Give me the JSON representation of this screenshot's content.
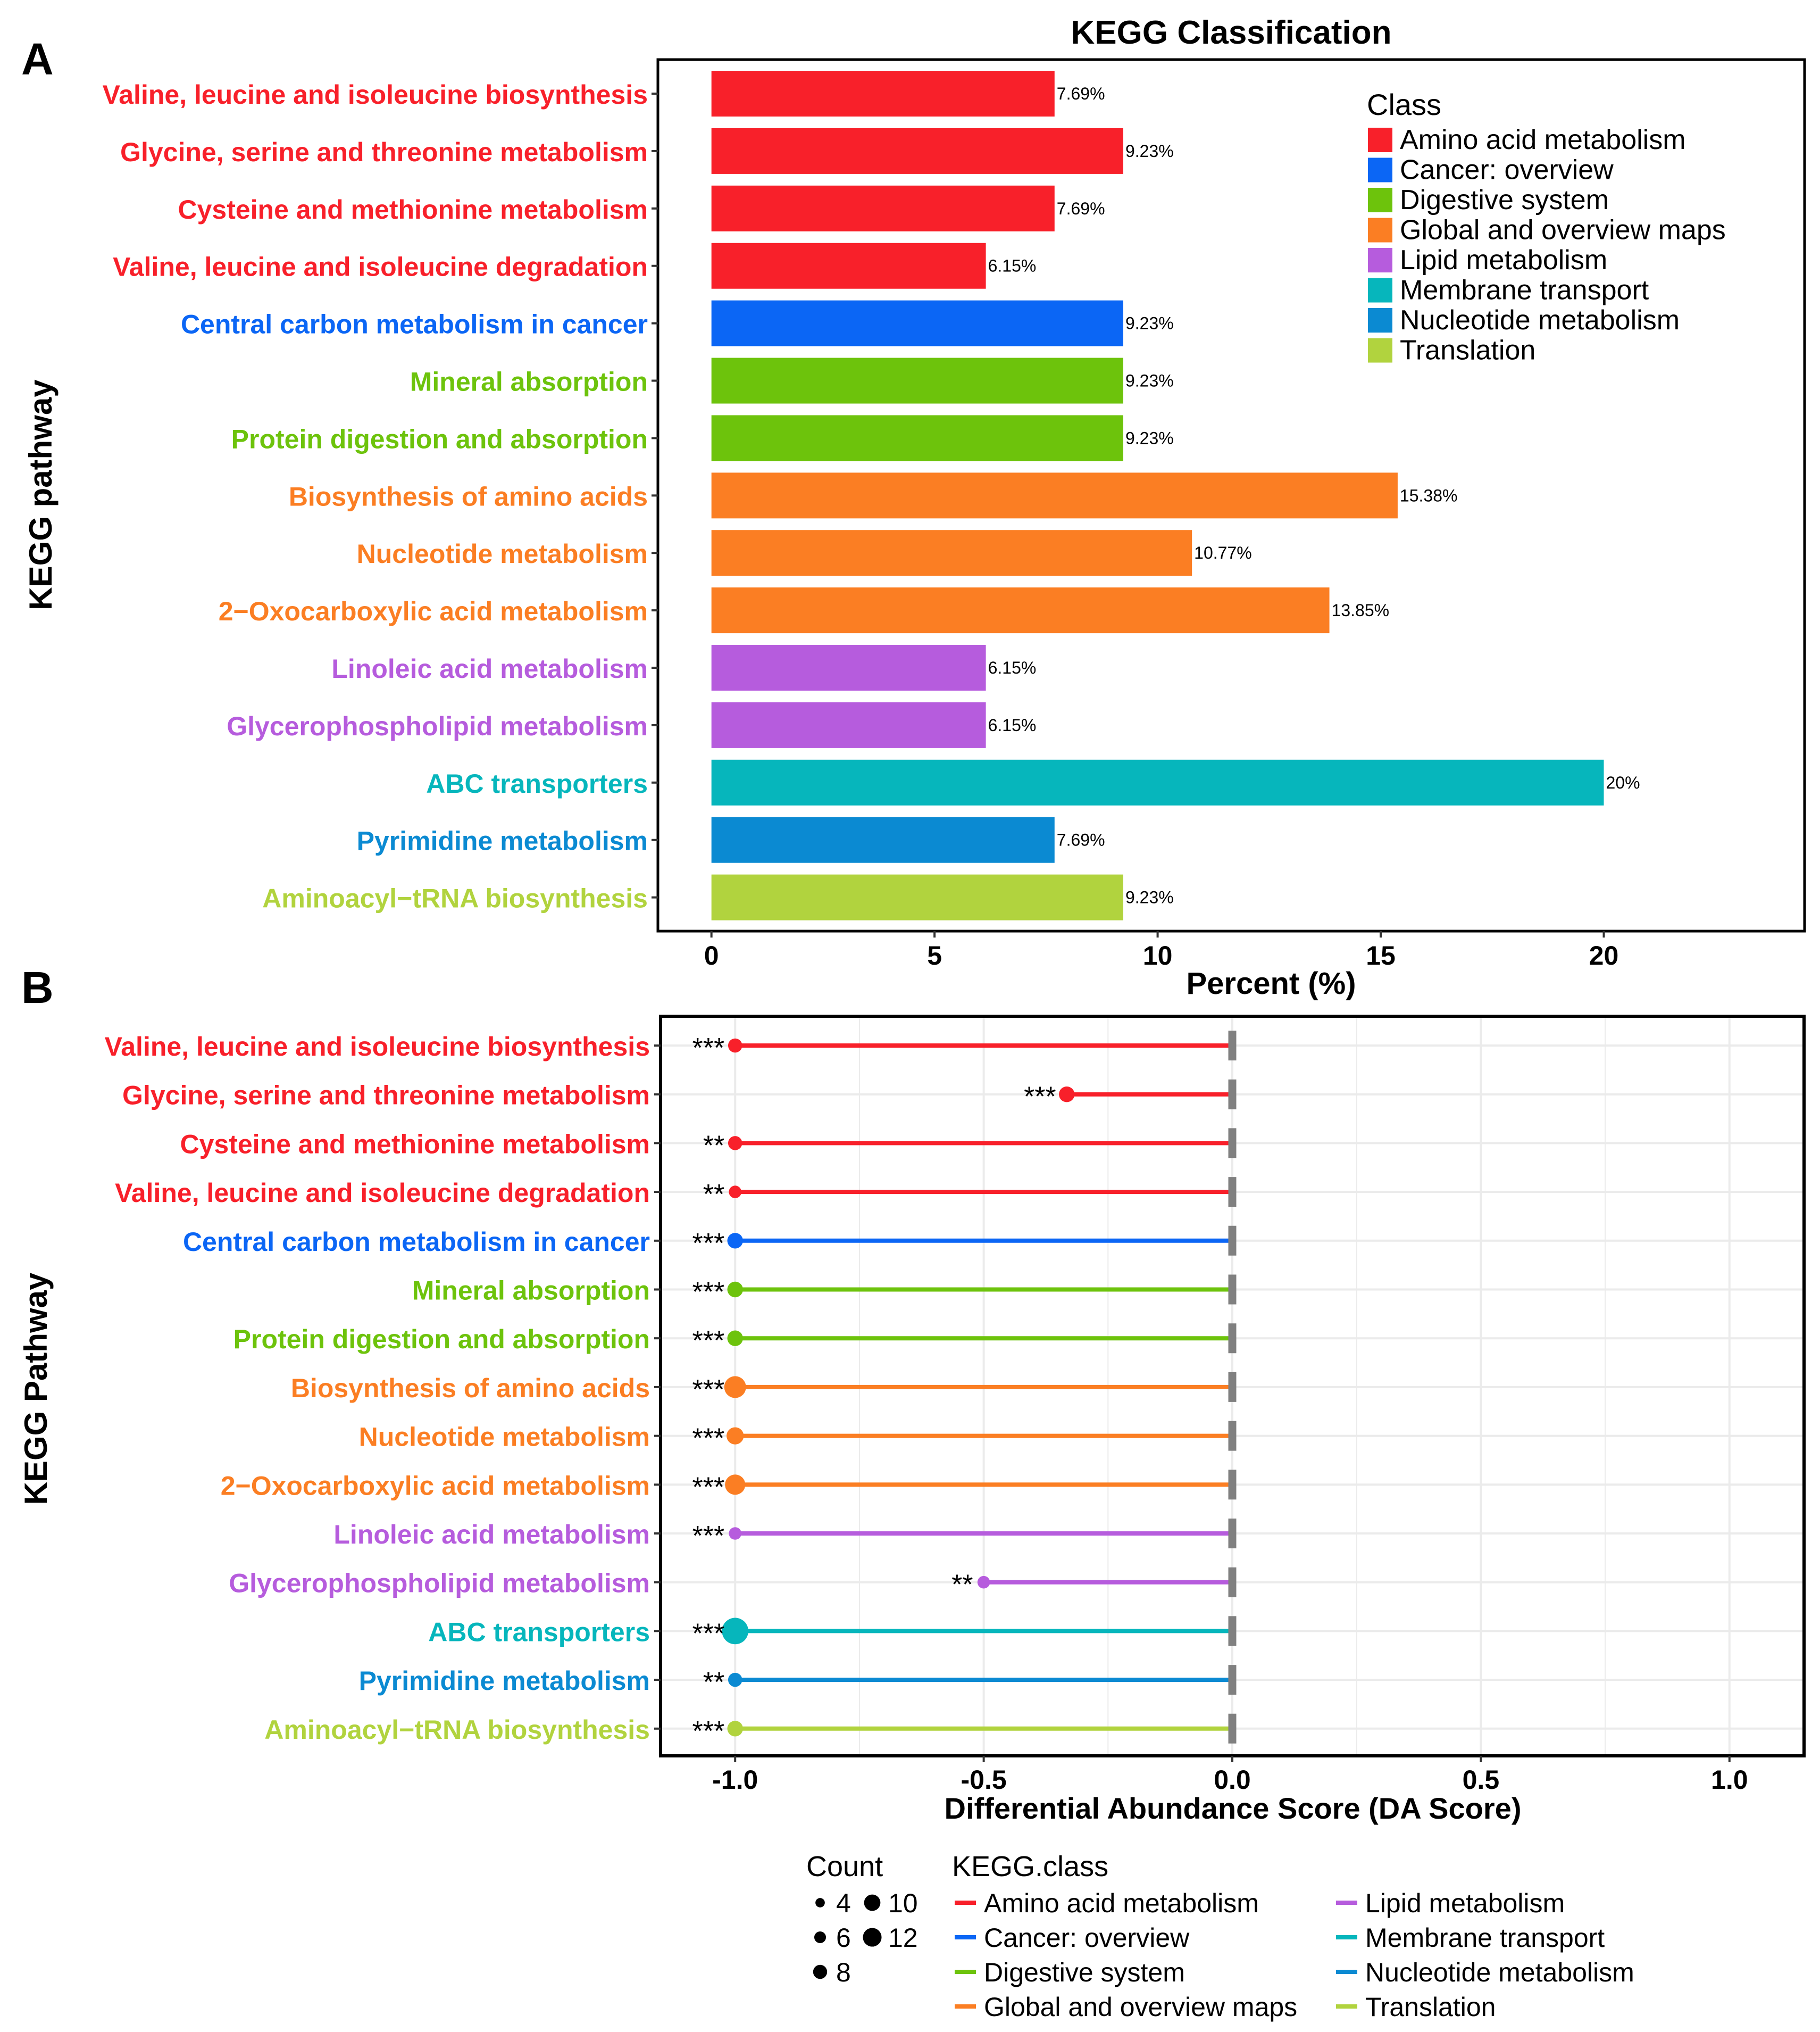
{
  "panels": {
    "a_label": "A",
    "b_label": "B"
  },
  "colors": {
    "Amino acid metabolism": "#F8202A",
    "Cancer: overview": "#0B66F5",
    "Digestive system": "#6DC30C",
    "Global and overview maps": "#FB7E23",
    "Lipid metabolism": "#B65CDD",
    "Membrane transport": "#06B6BC",
    "Nucleotide metabolism": "#0B8AD2",
    "Translation": "#B1D33E"
  },
  "chart_data": [
    {
      "type": "bar",
      "orientation": "horizontal",
      "title": "KEGG Classification",
      "xlabel": "Percent (%)",
      "ylabel": "KEGG pathway",
      "xlim": [
        -1.2,
        24.5
      ],
      "xticks": [
        0,
        5,
        10,
        15,
        20
      ],
      "xtick_labels": [
        "0",
        "5",
        "10",
        "15",
        "20"
      ],
      "grid": false,
      "legend": {
        "title": "Class",
        "placement": "top-right",
        "entries": [
          "Amino acid metabolism",
          "Cancer: overview",
          "Digestive system",
          "Global and overview maps",
          "Lipid metabolism",
          "Membrane transport",
          "Nucleotide metabolism",
          "Translation"
        ]
      },
      "categories": [
        "Valine, leucine and isoleucine biosynthesis",
        "Glycine, serine and threonine metabolism",
        "Cysteine and methionine metabolism",
        "Valine, leucine and isoleucine degradation",
        "Central carbon metabolism in cancer",
        "Mineral absorption",
        "Protein digestion and absorption",
        "Biosynthesis of amino acids",
        "Nucleotide metabolism",
        "2−Oxocarboxylic acid metabolism",
        "Linoleic acid metabolism",
        "Glycerophospholipid metabolism",
        "ABC transporters",
        "Pyrimidine metabolism",
        "Aminoacyl−tRNA biosynthesis"
      ],
      "classes": [
        "Amino acid metabolism",
        "Amino acid metabolism",
        "Amino acid metabolism",
        "Amino acid metabolism",
        "Cancer: overview",
        "Digestive system",
        "Digestive system",
        "Global and overview maps",
        "Global and overview maps",
        "Global and overview maps",
        "Lipid metabolism",
        "Lipid metabolism",
        "Membrane transport",
        "Nucleotide metabolism",
        "Translation"
      ],
      "values": [
        7.69,
        9.23,
        7.69,
        6.15,
        9.23,
        9.23,
        9.23,
        15.38,
        10.77,
        13.85,
        6.15,
        6.15,
        20,
        7.69,
        9.23
      ],
      "data_labels": [
        "7.69%",
        "9.23%",
        "7.69%",
        "6.15%",
        "9.23%",
        "9.23%",
        "9.23%",
        "15.38%",
        "10.77%",
        "13.85%",
        "6.15%",
        "6.15%",
        "20%",
        "7.69%",
        "9.23%"
      ]
    },
    {
      "type": "scatter",
      "subtype": "lollipop",
      "title": "",
      "xlabel": "Differential Abundance Score (DA Score)",
      "ylabel": "KEGG Pathway",
      "xlim": [
        -1.15,
        1.15
      ],
      "xticks": [
        -1.0,
        -0.5,
        0.0,
        0.5,
        1.0
      ],
      "xtick_labels": [
        "-1.0",
        "-0.5",
        "0.0",
        "0.5",
        "1.0"
      ],
      "grid": true,
      "reference_line_x": 0,
      "categories": [
        "Valine, leucine and isoleucine biosynthesis",
        "Glycine, serine and threonine metabolism",
        "Cysteine and methionine metabolism",
        "Valine, leucine and isoleucine degradation",
        "Central carbon metabolism in cancer",
        "Mineral absorption",
        "Protein digestion and absorption",
        "Biosynthesis of amino acids",
        "Nucleotide metabolism",
        "2−Oxocarboxylic acid metabolism",
        "Linoleic acid metabolism",
        "Glycerophospholipid metabolism",
        "ABC transporters",
        "Pyrimidine metabolism",
        "Aminoacyl−tRNA biosynthesis"
      ],
      "classes": [
        "Amino acid metabolism",
        "Amino acid metabolism",
        "Amino acid metabolism",
        "Amino acid metabolism",
        "Cancer: overview",
        "Digestive system",
        "Digestive system",
        "Global and overview maps",
        "Global and overview maps",
        "Global and overview maps",
        "Lipid metabolism",
        "Lipid metabolism",
        "Membrane transport",
        "Nucleotide metabolism",
        "Translation"
      ],
      "values": [
        -1.0,
        -0.333,
        -1.0,
        -1.0,
        -1.0,
        -1.0,
        -1.0,
        -1.0,
        -1.0,
        -1.0,
        -1.0,
        -0.5,
        -1.0,
        -1.0,
        -1.0
      ],
      "counts": [
        5,
        6,
        5,
        4,
        6,
        6,
        6,
        10,
        7,
        9,
        4,
        4,
        13,
        5,
        6
      ],
      "significance": [
        "***",
        "***",
        "**",
        "**",
        "***",
        "***",
        "***",
        "***",
        "***",
        "***",
        "***",
        "**",
        "***",
        "**",
        "***"
      ],
      "legend": {
        "placement": "bottom",
        "size_title": "Count",
        "size_values": [
          4,
          6,
          8,
          10,
          12
        ],
        "size_labels": [
          "4",
          "6",
          "8",
          "10",
          "12"
        ],
        "color_title": "KEGG.class",
        "color_entries": [
          "Amino acid metabolism",
          "Cancer: overview",
          "Digestive system",
          "Global and overview maps",
          "Lipid metabolism",
          "Membrane transport",
          "Nucleotide metabolism",
          "Translation"
        ]
      }
    }
  ]
}
